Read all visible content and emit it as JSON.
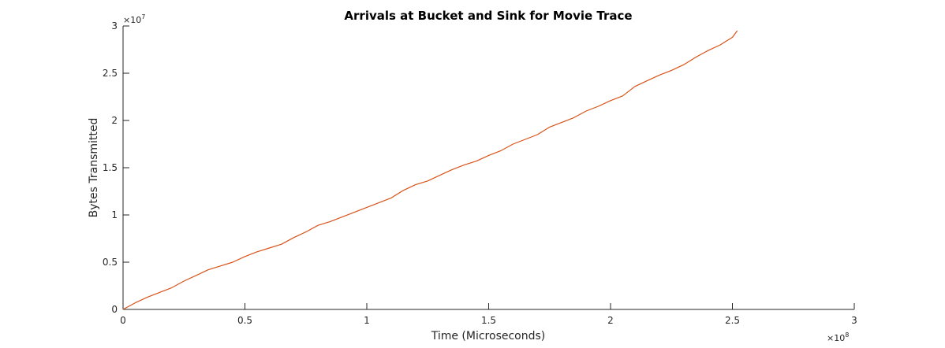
{
  "chart_data": {
    "type": "line",
    "title": "Arrivals at Bucket and Sink for Movie Trace",
    "xlabel": "Time (Microseconds)",
    "ylabel": "Bytes Transmitted",
    "xlim": [
      0,
      300000000
    ],
    "ylim": [
      0,
      30000000
    ],
    "x_ticks": [
      0,
      50000000,
      100000000,
      150000000,
      200000000,
      250000000,
      300000000
    ],
    "x_tick_labels": [
      "0",
      "0.5",
      "1",
      "1.5",
      "2",
      "2.5",
      "3"
    ],
    "y_ticks": [
      0,
      5000000,
      10000000,
      15000000,
      20000000,
      25000000,
      30000000
    ],
    "y_tick_labels": [
      "0",
      "0.5",
      "1",
      "1.5",
      "2",
      "2.5",
      "3"
    ],
    "x_multiplier": {
      "base": "×10",
      "exponent": "8"
    },
    "y_multiplier": {
      "base": "×10",
      "exponent": "7"
    },
    "grid": false,
    "series": [
      {
        "color": "#d95319",
        "x": [
          0,
          5000000,
          10000000,
          15000000,
          20000000,
          25000000,
          30000000,
          35000000,
          40000000,
          45000000,
          50000000,
          55000000,
          60000000,
          65000000,
          70000000,
          75000000,
          80000000,
          85000000,
          90000000,
          95000000,
          100000000,
          105000000,
          110000000,
          115000000,
          120000000,
          125000000,
          130000000,
          135000000,
          140000000,
          145000000,
          150000000,
          155000000,
          160000000,
          165000000,
          170000000,
          175000000,
          180000000,
          185000000,
          190000000,
          195000000,
          200000000,
          205000000,
          210000000,
          215000000,
          220000000,
          225000000,
          230000000,
          235000000,
          240000000,
          245000000,
          250000000,
          252000000
        ],
        "y": [
          0,
          700000,
          1300000,
          1800000,
          2300000,
          3000000,
          3600000,
          4200000,
          4600000,
          5000000,
          5600000,
          6100000,
          6500000,
          6900000,
          7600000,
          8200000,
          8900000,
          9300000,
          9800000,
          10300000,
          10800000,
          11300000,
          11800000,
          12600000,
          13200000,
          13600000,
          14200000,
          14800000,
          15300000,
          15700000,
          16300000,
          16800000,
          17500000,
          18000000,
          18500000,
          19300000,
          19800000,
          20300000,
          21000000,
          21500000,
          22100000,
          22600000,
          23600000,
          24200000,
          24800000,
          25300000,
          25900000,
          26700000,
          27400000,
          28000000,
          28800000,
          29500000
        ]
      }
    ]
  }
}
